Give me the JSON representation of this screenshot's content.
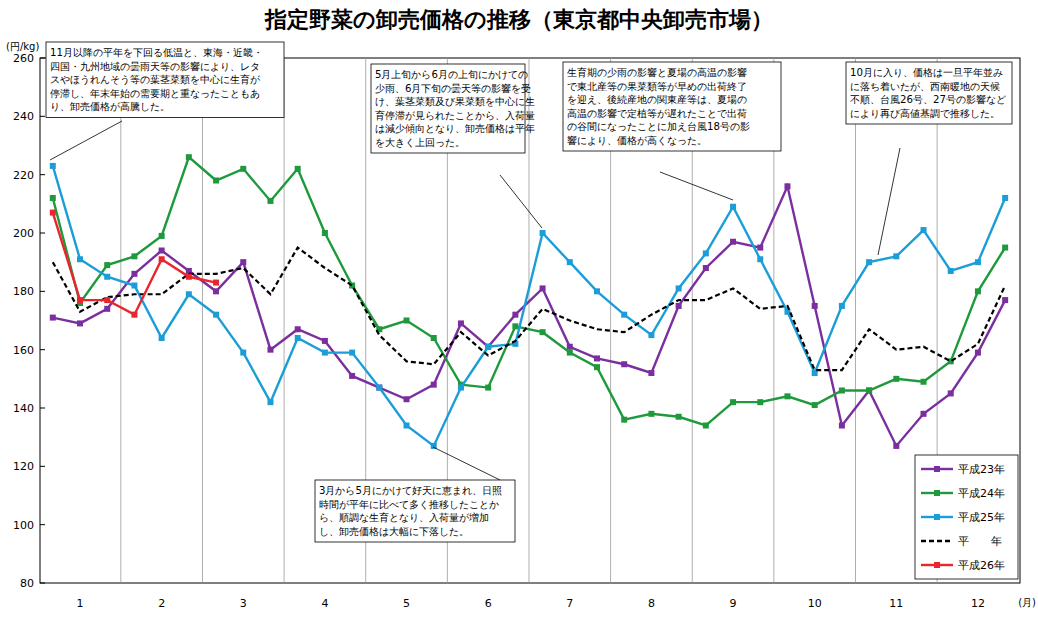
{
  "chart_data": {
    "type": "line",
    "title": "指定野菜の卸売価格の推移（東京都中央卸売市場）",
    "y_label": "(円/kg)",
    "x_label": "(月)",
    "categories": [
      null,
      "1",
      null,
      null,
      "2",
      null,
      null,
      "3",
      null,
      null,
      "4",
      null,
      null,
      "5",
      null,
      null,
      "6",
      null,
      null,
      "7",
      null,
      null,
      "8",
      null,
      null,
      "9",
      null,
      null,
      "10",
      null,
      null,
      "11",
      null,
      null,
      "12",
      null
    ],
    "ylim": [
      80,
      260
    ],
    "yticks": [
      80,
      100,
      120,
      140,
      160,
      180,
      200,
      220,
      240,
      260
    ],
    "legend": "lower right",
    "series": [
      {
        "name": "平成23年",
        "color": "#7b2f9e",
        "marker": "square",
        "line_style": "solid",
        "values": [
          171,
          169,
          174,
          186,
          194,
          187,
          180,
          190,
          160,
          167,
          163,
          151,
          147,
          143,
          148,
          169,
          161,
          172,
          181,
          161,
          157,
          155,
          152,
          175,
          188,
          197,
          195,
          216,
          175,
          134,
          146,
          127,
          138,
          145,
          159,
          177
        ]
      },
      {
        "name": "平成24年",
        "color": "#1e9a3c",
        "marker": "square",
        "line_style": "solid",
        "values": [
          212,
          176,
          189,
          192,
          199,
          226,
          218,
          222,
          211,
          222,
          200,
          182,
          167,
          170,
          164,
          148,
          147,
          168,
          166,
          159,
          154,
          136,
          138,
          137,
          134,
          142,
          142,
          144,
          141,
          146,
          146,
          150,
          149,
          156,
          180,
          195
        ]
      },
      {
        "name": "平成25年",
        "color": "#1b9ed8",
        "marker": "square",
        "line_style": "solid",
        "values": [
          223,
          191,
          185,
          182,
          164,
          179,
          172,
          159,
          142,
          164,
          159,
          159,
          147,
          134,
          127,
          147,
          161,
          162,
          200,
          190,
          180,
          172,
          165,
          181,
          193,
          209,
          191,
          173,
          152,
          175,
          190,
          192,
          201,
          187,
          190,
          212
        ]
      },
      {
        "name": "平　　年",
        "color": "#000000",
        "marker": "none",
        "line_style": "dashed",
        "values": [
          190,
          173,
          178,
          179,
          179,
          186,
          186,
          188,
          179,
          195,
          188,
          182,
          165,
          156,
          155,
          166,
          158,
          163,
          174,
          170,
          167,
          166,
          172,
          177,
          177,
          181,
          174,
          175,
          153,
          153,
          167,
          160,
          161,
          156,
          162,
          182
        ]
      },
      {
        "name": "平成26年",
        "color": "#e8262b",
        "marker": "square",
        "line_style": "solid",
        "values": [
          207,
          177,
          177,
          172,
          191,
          185,
          183,
          null,
          null,
          null,
          null,
          null,
          null,
          null,
          null,
          null,
          null,
          null,
          null,
          null,
          null,
          null,
          null,
          null,
          null,
          null,
          null,
          null,
          null,
          null,
          null,
          null,
          null,
          null,
          null,
          null
        ]
      }
    ],
    "annotations": [
      {
        "text": [
          "11月以降の平年を下回る低温と、東海・近畿・",
          "四国・九州地域の曇雨天等の影響により、レタ",
          "スやほうれんそう等の葉茎菜類を中心に生育が",
          "停滞し、年末年始の需要期と重なったこともあ",
          "り、卸売価格が高騰した。"
        ]
      },
      {
        "text": [
          "5月上旬から6月の上旬にかけての",
          "少雨、6月下旬の曇天等の影響を受",
          "け、葉茎菜類及び果菜類を中心に生",
          "育停滞が見られたことから、入荷量",
          "は減少傾向となり、卸売価格は平年",
          "を大きく上回った。"
        ]
      },
      {
        "text": [
          "生育期の少雨の影響と夏場の高温の影響",
          "で東北産等の果菜類等が早めの出荷終了",
          "を迎え、後続産地の関東産等は、夏場の",
          "高温の影響で定植等が遅れたことで出荷",
          "の谷間になったことに加え台風18号の影",
          "響により、価格が高くなった。"
        ]
      },
      {
        "text": [
          "10月に入り、価格は一旦平年並み",
          "に落ち着いたが、西南暖地の天候",
          "不順、台風26号、27号の影響など",
          "により再び高値基調で推移した。"
        ]
      },
      {
        "text": [
          "3月から5月にかけて好天に恵まれ、日照",
          "時間が平年に比べて多く推移したことか",
          "ら、順調な生育となり、入荷量が増加",
          "し、卸売価格は大幅に下落した。"
        ]
      }
    ]
  }
}
